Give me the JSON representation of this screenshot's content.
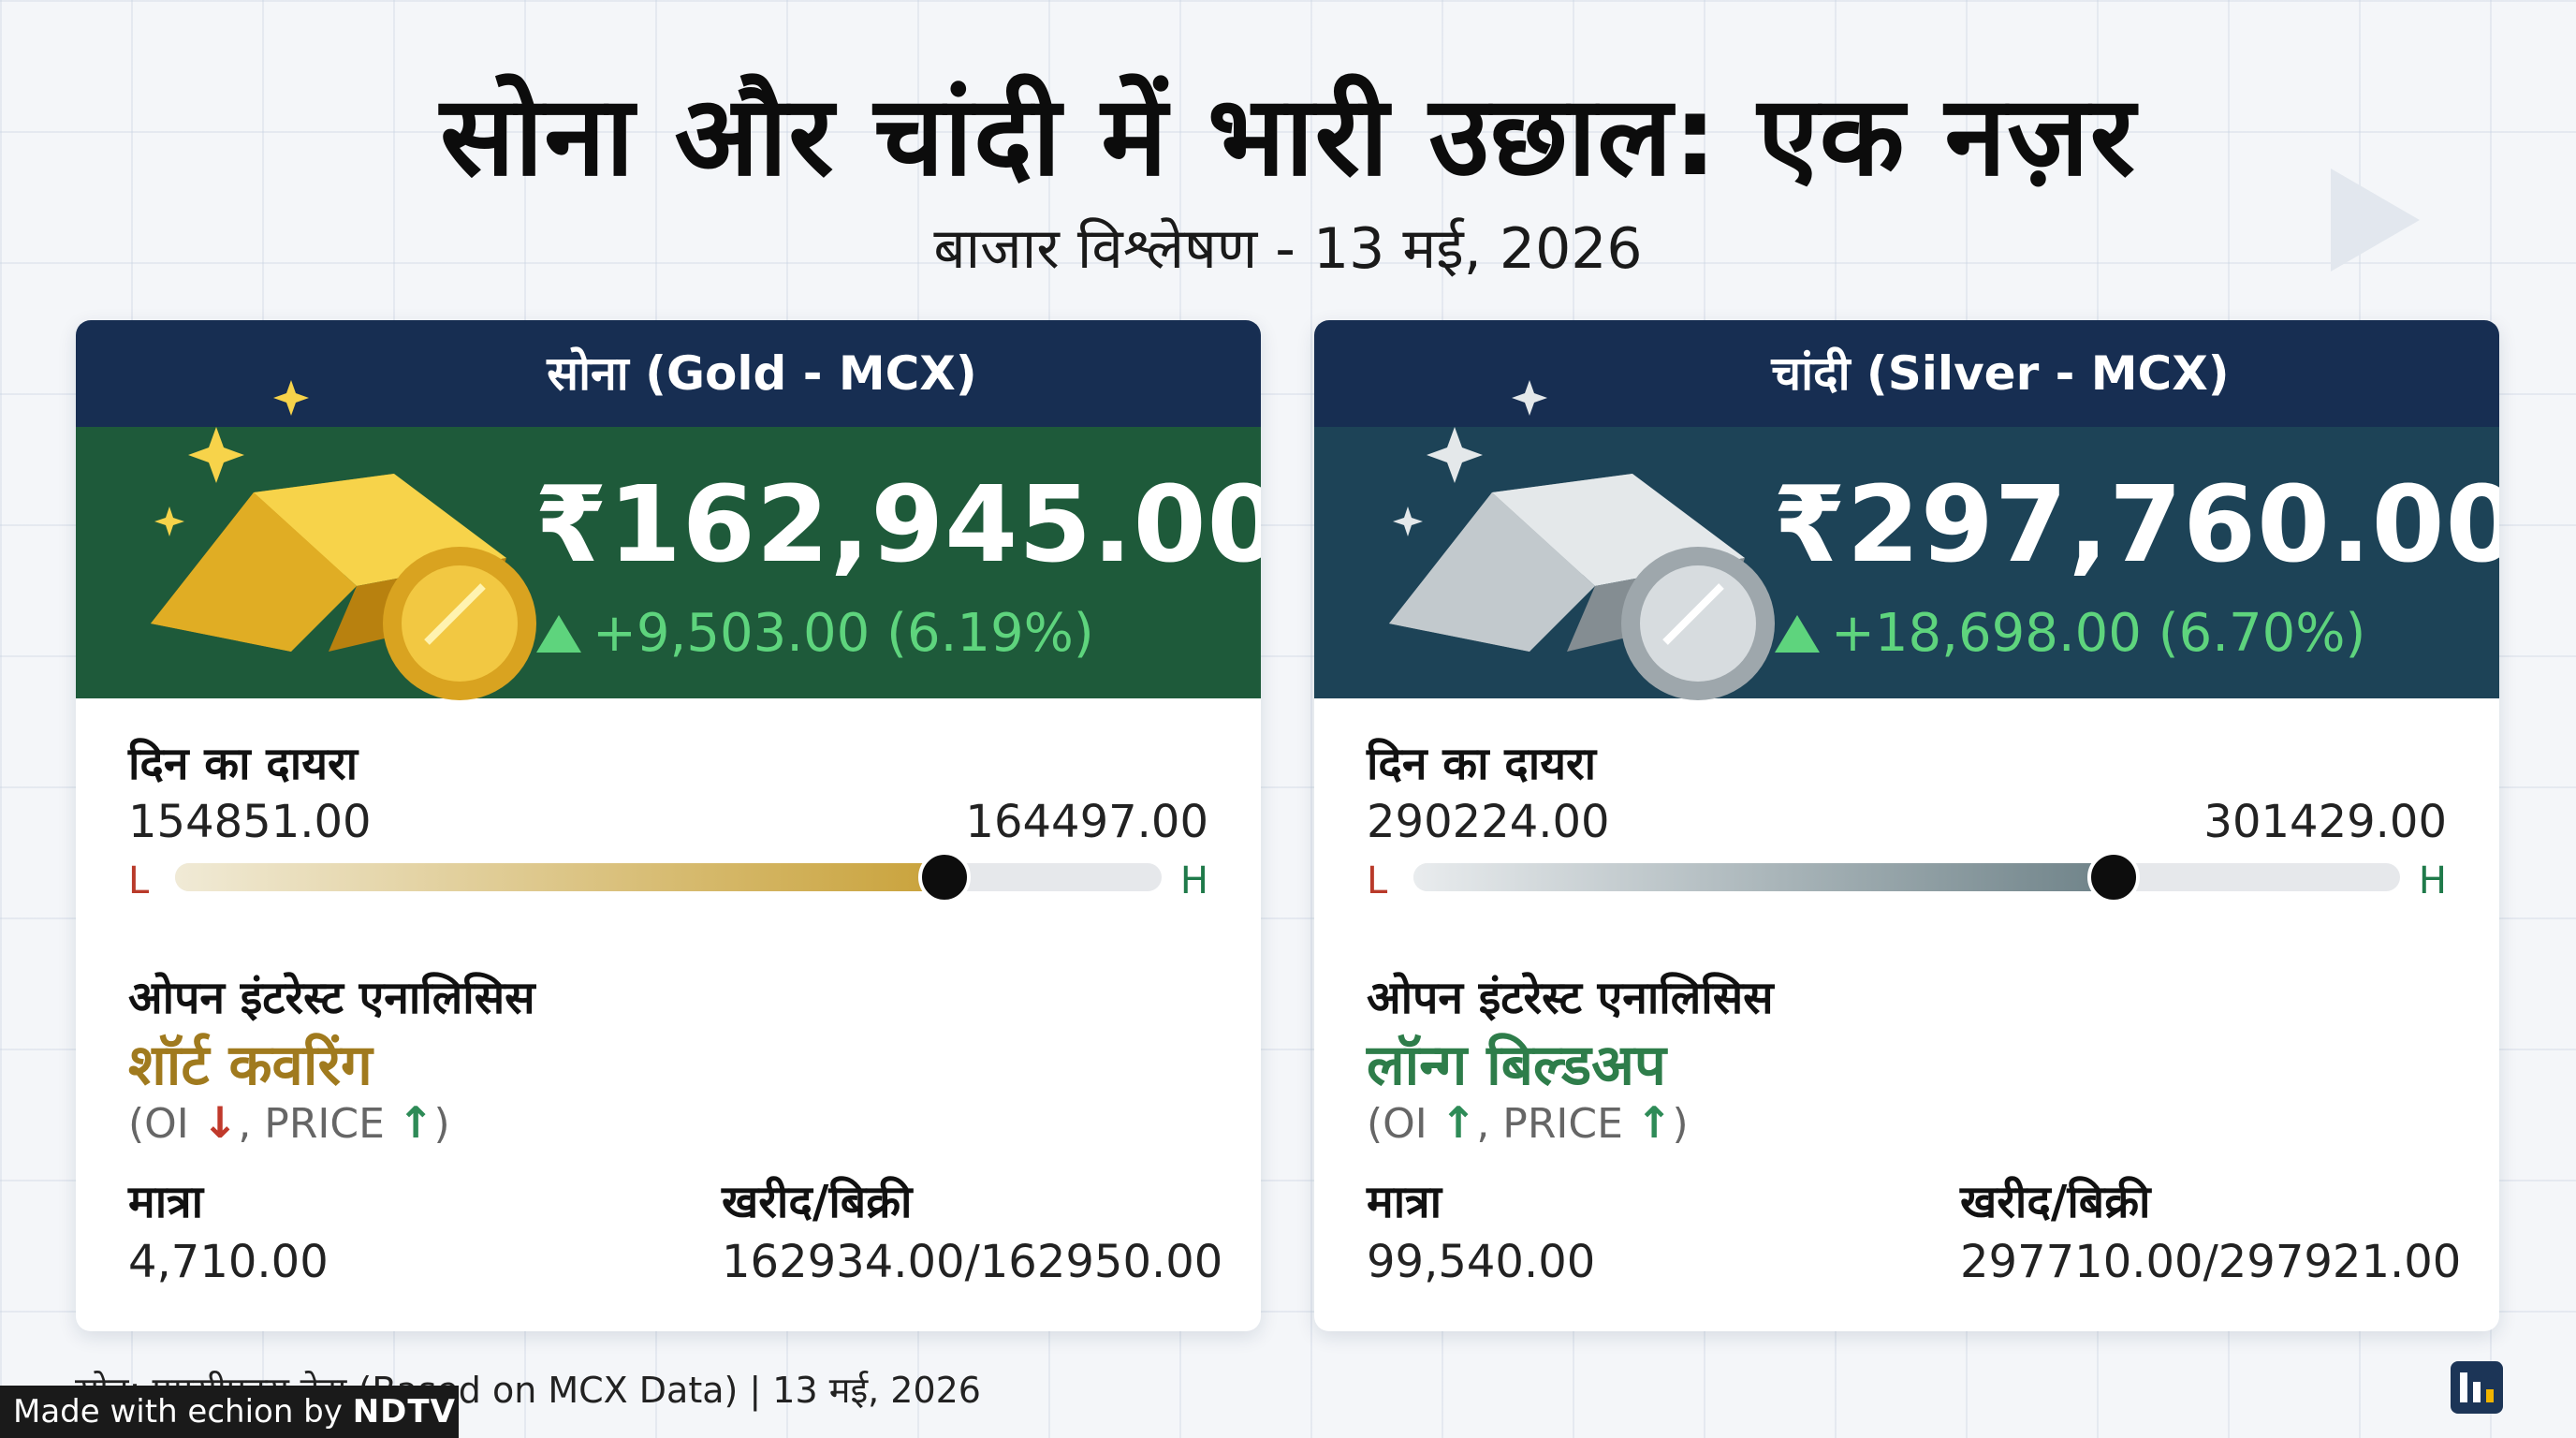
{
  "header": {
    "title": "सोना और चांदी में भारी उछाल: एक नज़र",
    "subtitle": "बाजार विश्लेषण - 13 मई, 2026"
  },
  "gold": {
    "name": "सोना (Gold - MCX)",
    "price": "₹162,945.00",
    "change": "+9,503.00 (6.19%)",
    "range_label": "दिन का दायरा",
    "low": "154851.00",
    "high": "164497.00",
    "low_marker": "L",
    "high_marker": "H",
    "range_position": 0.78,
    "oi_label": "ओपन इंटरेस्ट एनालिसिस",
    "oi_status": "शॉर्ट कवरिंग",
    "oi_prefix": "(OI",
    "oi_arrow": "↓",
    "price_word": ", PRICE",
    "price_arrow": "↑",
    "suffix": ")",
    "volume_label": "मात्रा",
    "volume": "4,710.00",
    "bidask_label": "खरीद/बिक्री",
    "bidask": "162934.00/162950.00",
    "accent": "#c9a23a",
    "hero_color": "#1e5a3a"
  },
  "silver": {
    "name": "चांदी (Silver - MCX)",
    "price": "₹297,760.00",
    "change": "+18,698.00 (6.70%)",
    "range_label": "दिन का दायरा",
    "low": "290224.00",
    "high": "301429.00",
    "low_marker": "L",
    "high_marker": "H",
    "range_position": 0.71,
    "oi_label": "ओपन इंटरेस्ट एनालिसिस",
    "oi_status": "लॉन्ग बिल्डअप",
    "oi_prefix": "(OI",
    "oi_arrow": "↑",
    "price_word": ", PRICE",
    "price_arrow": "↑",
    "suffix": ")",
    "volume_label": "मात्रा",
    "volume": "99,540.00",
    "bidask_label": "खरीद/बिक्री",
    "bidask": "297710.00/297921.00",
    "accent": "#6e8288",
    "hero_color": "#1d4357"
  },
  "footer": {
    "source": "स्रोत: एमसीएक्स डेटा (Based on MCX Data) | 13 मई, 2026",
    "badge_prefix": "Made with echion by",
    "badge_brand": "NDTV"
  },
  "icons": {
    "gold_art": "gold-bar-coin-icon",
    "silver_art": "silver-bar-coin-icon",
    "up_triangle": "triangle-up-icon",
    "logo": "app-logo-icon"
  }
}
